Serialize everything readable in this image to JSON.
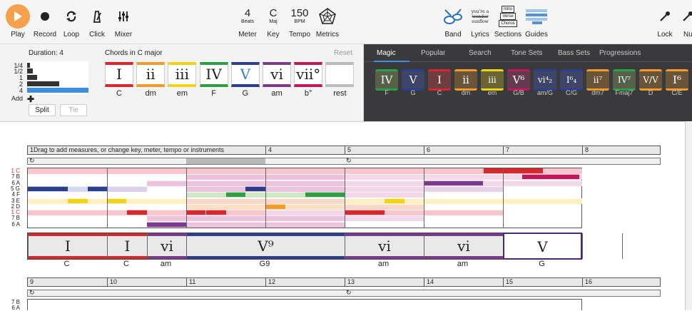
{
  "toolbar": {
    "play": "Play",
    "record": "Record",
    "loop": "Loop",
    "click": "Click",
    "mixer": "Mixer",
    "meter_value": "4",
    "meter_sub": "Beats",
    "meter": "Meter",
    "key_value": "C",
    "key_sub": "Maj",
    "key": "Key",
    "tempo_value": "150",
    "tempo_sub": "BPM",
    "tempo": "Tempo",
    "metrics": "Metrics",
    "band": "Band",
    "lyrics": "Lyrics",
    "sections": "Sections",
    "guides": "Guides",
    "lyrics_thumb": [
      "you're a",
      "wonder",
      "sunflow"
    ],
    "sections_thumb": [
      "Intro",
      "Verse",
      "Chorus"
    ],
    "lock": "Lock",
    "nu": "Nu",
    "colors": {
      "play": "#f5a04d"
    }
  },
  "duration": {
    "label": "Duration: 4",
    "options": [
      "1/4",
      "1/2",
      "1",
      "2",
      "4"
    ],
    "selected": "4",
    "add": "Add",
    "split": "Split",
    "tie": "Tie"
  },
  "chords_panel": {
    "title": "Chords in C major",
    "reset": "Reset",
    "chords": [
      {
        "roman": "I",
        "name": "C",
        "color": "#d9272e"
      },
      {
        "roman": "ii",
        "name": "dm",
        "color": "#f29a2e"
      },
      {
        "roman": "iii",
        "name": "em",
        "color": "#f1d418"
      },
      {
        "roman": "IV",
        "name": "F",
        "color": "#2e9e45"
      },
      {
        "roman": "V",
        "name": "G",
        "color": "#2c3e8c"
      },
      {
        "roman": "vi",
        "name": "am",
        "color": "#7b3b8c"
      },
      {
        "roman": "vii°",
        "name": "b°",
        "color": "#c2185b"
      },
      {
        "roman": "",
        "name": "rest",
        "color": "#bbbbbb"
      }
    ]
  },
  "magic": {
    "tabs": [
      "Magic",
      "Popular",
      "Search",
      "Tone Sets",
      "Bass Sets",
      "Progressions"
    ],
    "active_tab": "Magic",
    "chords": [
      {
        "roman": "IV",
        "name": "F",
        "color": "#2e9e45"
      },
      {
        "roman": "V",
        "name": "G",
        "color": "#2c3e8c"
      },
      {
        "roman": "I",
        "name": "C",
        "color": "#d9272e"
      },
      {
        "roman": "ii",
        "name": "dm",
        "color": "#f29a2e"
      },
      {
        "roman": "iii",
        "name": "em",
        "color": "#f1d418"
      },
      {
        "roman": "V⁶",
        "name": "G/B",
        "color": "#c2185b"
      },
      {
        "roman": "vi⁴₂",
        "name": "am/G",
        "color": "#2c3e8c"
      },
      {
        "roman": "I⁶₄",
        "name": "C/G",
        "color": "#2c3e8c"
      },
      {
        "roman": "ii⁷",
        "name": "dm7",
        "color": "#f29a2e"
      },
      {
        "roman": "IV⁷",
        "name": "Fmaj7",
        "color": "#2e9e45"
      },
      {
        "roman": "V/V",
        "name": "D",
        "color": "#f29a2e"
      },
      {
        "roman": "I⁶",
        "name": "C/E",
        "color": "#f29a2e"
      }
    ]
  },
  "sheet": {
    "row1": {
      "measures": [
        "1",
        "4",
        "5",
        "6",
        "7",
        "8"
      ],
      "hint": "Drag to add measures, or change key, meter, tempo or instruments"
    },
    "pitches": [
      "1 C",
      "7 B",
      "6 A",
      "5 G",
      "4 F",
      "3 E",
      "2 D",
      "1 C",
      "7 B",
      "6 A"
    ],
    "chord_track": [
      {
        "roman": "I",
        "name": "C",
        "color": "#d9272e"
      },
      {
        "roman": "I",
        "name": "C",
        "color": "#d9272e"
      },
      {
        "roman": "vi",
        "name": "am",
        "color": "#7b3b8c"
      },
      {
        "roman": "V⁹",
        "name": "G9",
        "color": "#2c3e8c"
      },
      {
        "roman": "vi",
        "name": "am",
        "color": "#7b3b8c"
      },
      {
        "roman": "vi",
        "name": "am",
        "color": "#7b3b8c"
      },
      {
        "roman": "V",
        "name": "G",
        "color": "#2c3e8c"
      }
    ],
    "row2": {
      "measures": [
        "9",
        "10",
        "11",
        "12",
        "13",
        "14",
        "15",
        "16"
      ],
      "pitches": [
        "7 B",
        "6 A"
      ]
    }
  }
}
